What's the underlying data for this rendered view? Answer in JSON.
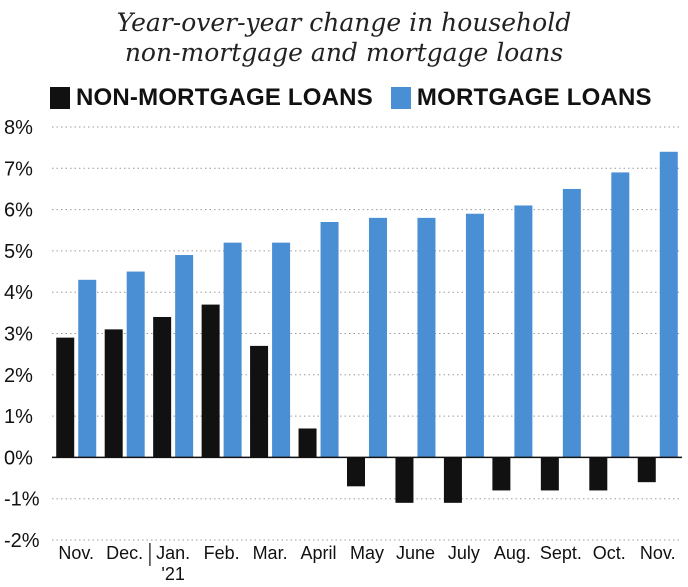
{
  "chart_data": {
    "type": "bar",
    "title_line1": "Year-over-year change in household",
    "title_line2": "non-mortgage and mortgage loans",
    "categories": [
      "Nov.",
      "Dec.",
      "Jan.",
      "Feb.",
      "Mar.",
      "April",
      "May",
      "June",
      "July",
      "Aug.",
      "Sept.",
      "Oct.",
      "Nov."
    ],
    "year_marker": "'21",
    "series": [
      {
        "name": "NON-MORTGAGE LOANS",
        "color": "#111111",
        "values": [
          2.9,
          3.1,
          3.4,
          3.7,
          2.7,
          0.7,
          -0.7,
          -1.1,
          -1.1,
          -0.8,
          -0.8,
          -0.8,
          -0.6
        ]
      },
      {
        "name": "MORTGAGE LOANS",
        "color": "#4a8fd4",
        "values": [
          4.3,
          4.5,
          4.9,
          5.2,
          5.2,
          5.7,
          5.8,
          5.8,
          5.9,
          6.1,
          6.5,
          6.9,
          7.4
        ]
      }
    ],
    "yticks": [
      "8%",
      "7%",
      "6%",
      "5%",
      "4%",
      "3%",
      "2%",
      "1%",
      "0%",
      "-1%",
      "-2%"
    ],
    "ylim": [
      -2,
      8
    ],
    "grid": true,
    "legend_position": "top-left"
  }
}
